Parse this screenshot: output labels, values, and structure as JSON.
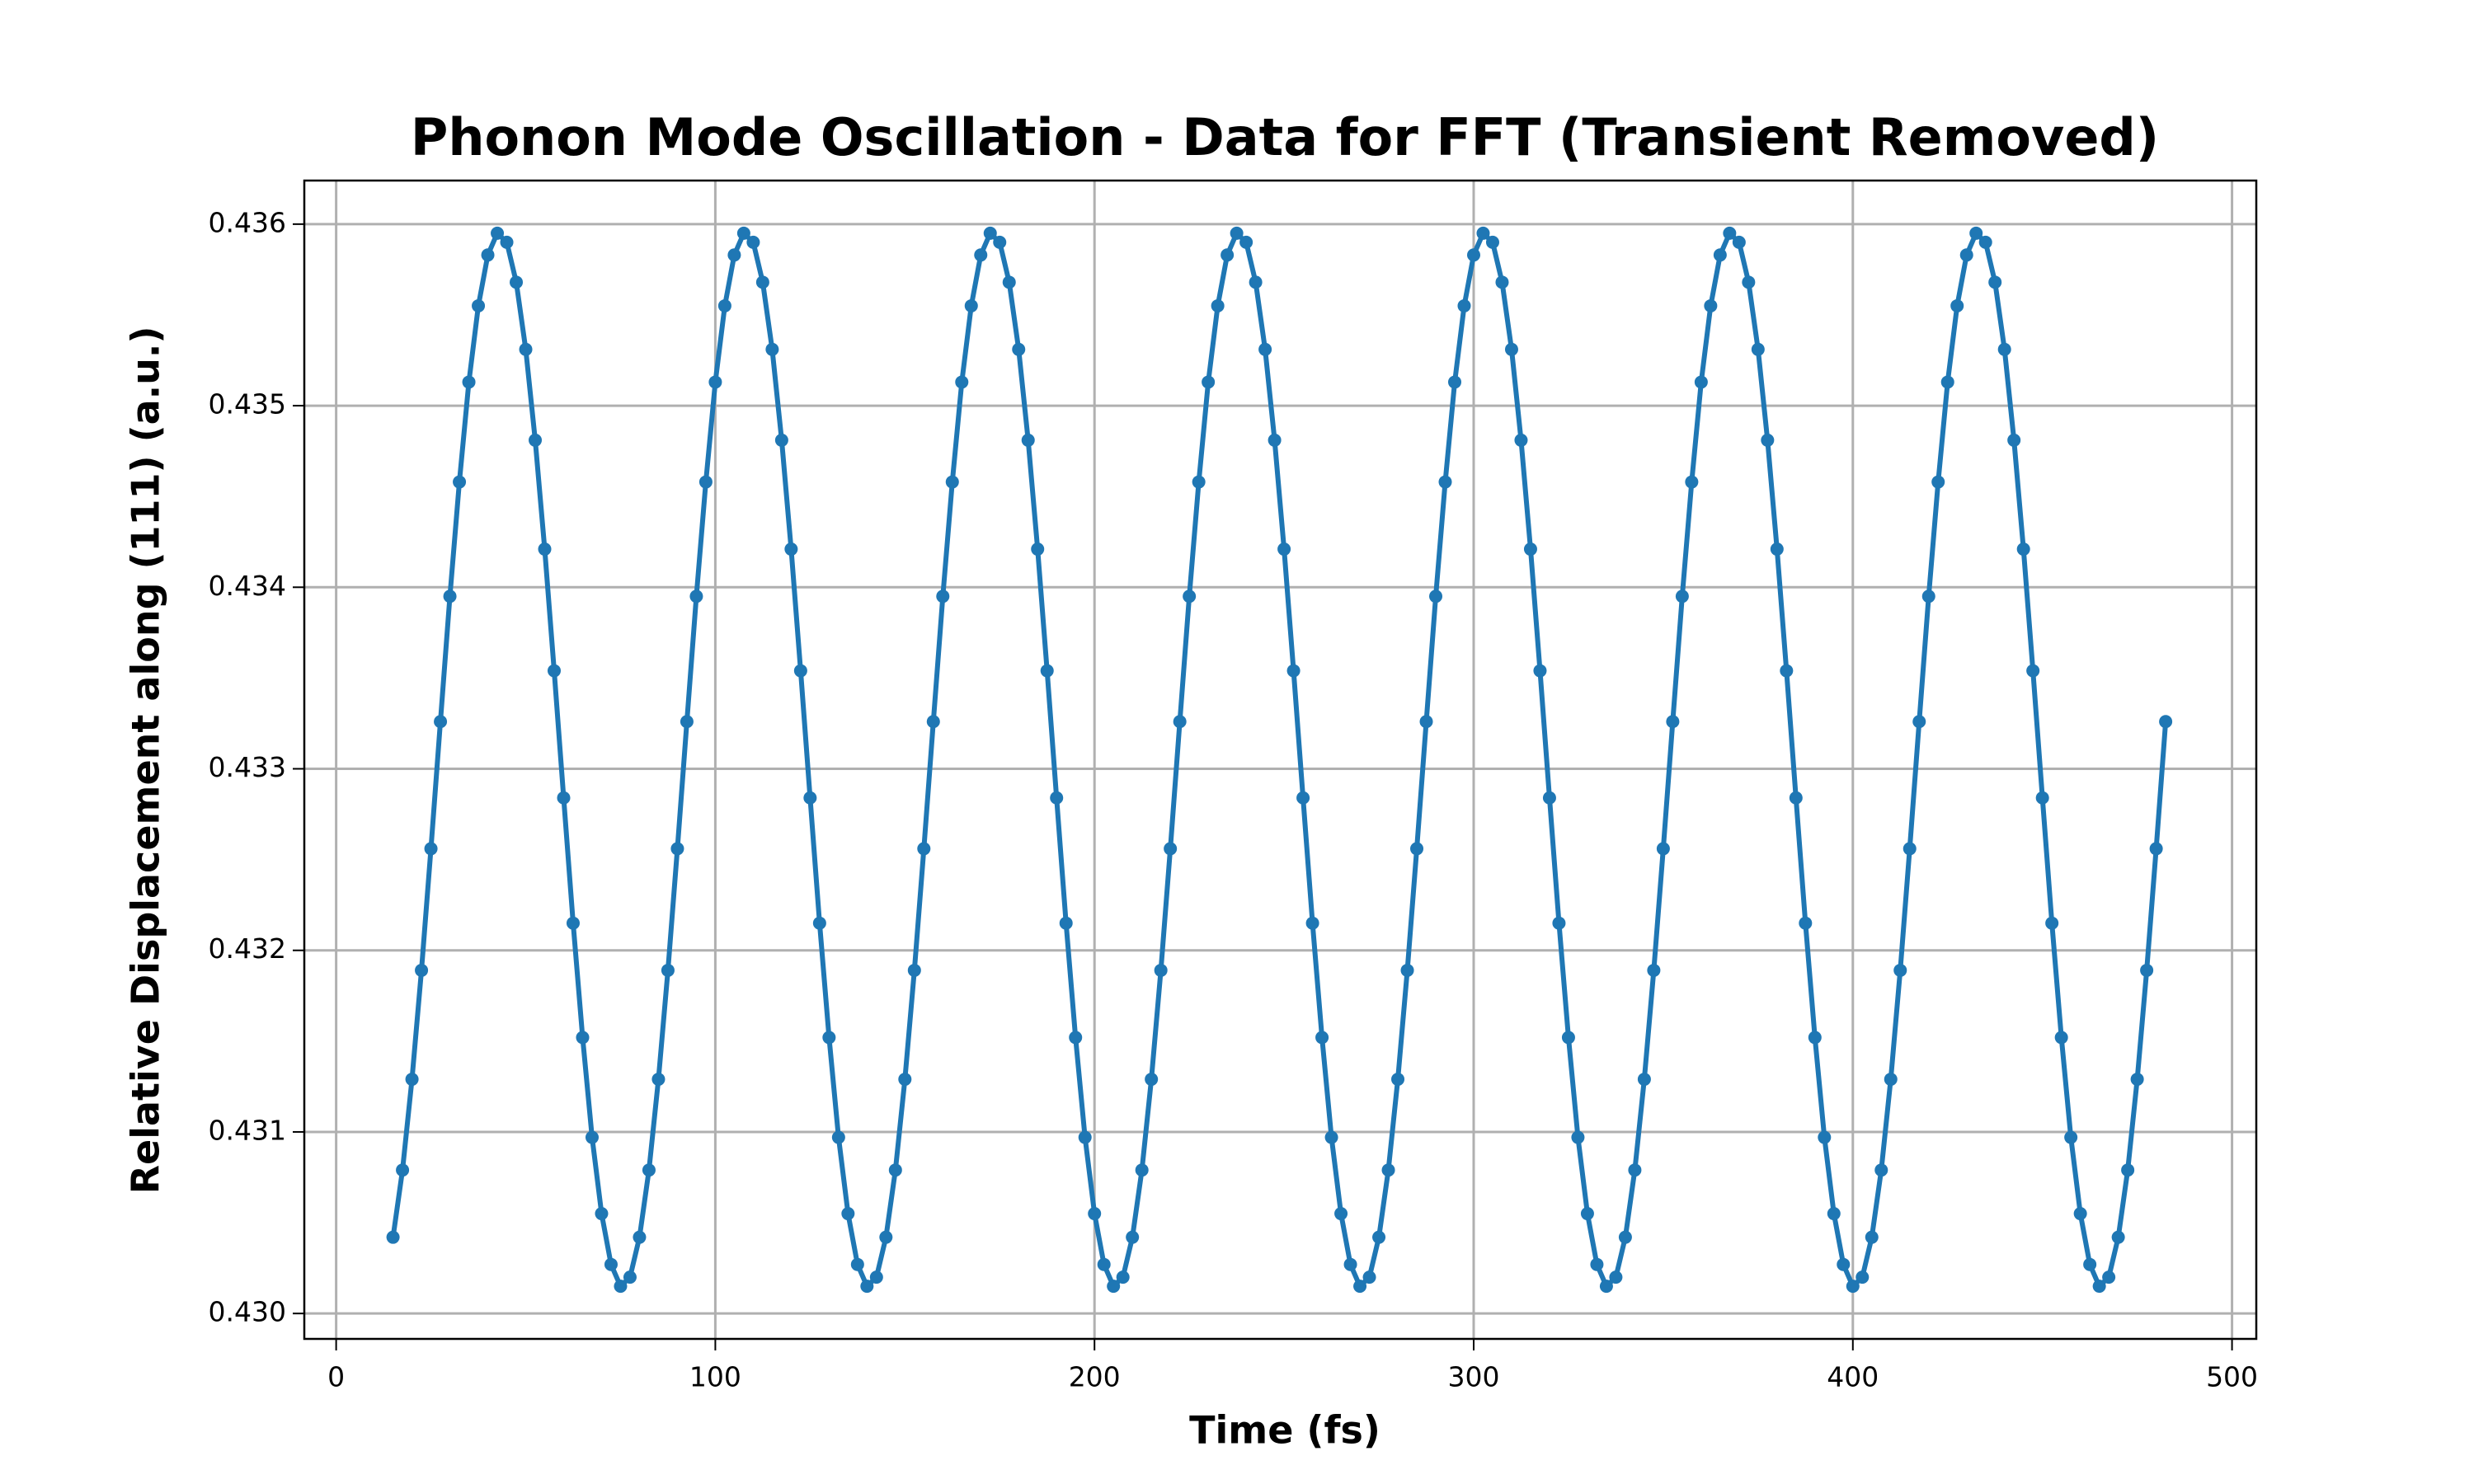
{
  "chart_data": {
    "type": "line",
    "title": "Phonon Mode Oscillation - Data for FFT (Transient Removed)",
    "x_label": "Time (fs)",
    "y_label": "Relative Displacement along (111) (a.u.)",
    "x": [
      15,
      17.5,
      20,
      22.5,
      25,
      27.5,
      30,
      32.5,
      35,
      37.5,
      40,
      42.5,
      45,
      47.5,
      50,
      52.5,
      55,
      57.5,
      60,
      62.5,
      65,
      67.5,
      70,
      72.5,
      75,
      77.5,
      80,
      82.5,
      85,
      87.5,
      90,
      92.5,
      95,
      97.5,
      100,
      102.5,
      105,
      107.5,
      110,
      112.5,
      115,
      117.5,
      120,
      122.5,
      125,
      127.5,
      130,
      132.5,
      135,
      137.5,
      140,
      142.5,
      145,
      147.5,
      150,
      152.5,
      155,
      157.5,
      160,
      162.5,
      165,
      167.5,
      170,
      172.5,
      175,
      177.5,
      180,
      182.5,
      185,
      187.5,
      190,
      192.5,
      195,
      197.5,
      200,
      202.5,
      205,
      207.5,
      210,
      212.5,
      215,
      217.5,
      220,
      222.5,
      225,
      227.5,
      230,
      232.5,
      235,
      237.5,
      240,
      242.5,
      245,
      247.5,
      250,
      252.5,
      255,
      257.5,
      260,
      262.5,
      265,
      267.5,
      270,
      272.5,
      275,
      277.5,
      280,
      282.5,
      285,
      287.5,
      290,
      292.5,
      295,
      297.5,
      300,
      302.5,
      305,
      307.5,
      310,
      312.5,
      315,
      317.5,
      320,
      322.5,
      325,
      327.5,
      330,
      332.5,
      335,
      337.5,
      340,
      342.5,
      345,
      347.5,
      350,
      352.5,
      355,
      357.5,
      360,
      362.5,
      365,
      367.5,
      370,
      372.5,
      375,
      377.5,
      380,
      382.5,
      385,
      387.5,
      390,
      392.5,
      395,
      397.5,
      400,
      402.5,
      405,
      407.5,
      410,
      412.5,
      415,
      417.5,
      420,
      422.5,
      425,
      427.5,
      430,
      432.5,
      435,
      437.5,
      440,
      442.5,
      445,
      447.5,
      450,
      452.5,
      455,
      457.5,
      460,
      462.5,
      465,
      467.5,
      470,
      472.5,
      475,
      477.5,
      480,
      482.5
    ],
    "series": [
      {
        "color": "#1f77b4",
        "values": [
          0.43042,
          0.43079,
          0.43129,
          0.43189,
          0.43256,
          0.43326,
          0.43395,
          0.43458,
          0.43513,
          0.43555,
          0.43583,
          0.43595,
          0.4359,
          0.43568,
          0.43531,
          0.43481,
          0.43421,
          0.43354,
          0.43284,
          0.43215,
          0.43152,
          0.43097,
          0.43055,
          0.43027,
          0.43015,
          0.4302,
          0.43042,
          0.43079,
          0.43129,
          0.43189,
          0.43256,
          0.43326,
          0.43395,
          0.43458,
          0.43513,
          0.43555,
          0.43583,
          0.43595,
          0.4359,
          0.43568,
          0.43531,
          0.43481,
          0.43421,
          0.43354,
          0.43284,
          0.43215,
          0.43152,
          0.43097,
          0.43055,
          0.43027,
          0.43015,
          0.4302,
          0.43042,
          0.43079,
          0.43129,
          0.43189,
          0.43256,
          0.43326,
          0.43395,
          0.43458,
          0.43513,
          0.43555,
          0.43583,
          0.43595,
          0.4359,
          0.43568,
          0.43531,
          0.43481,
          0.43421,
          0.43354,
          0.43284,
          0.43215,
          0.43152,
          0.43097,
          0.43055,
          0.43027,
          0.43015,
          0.4302,
          0.43042,
          0.43079,
          0.43129,
          0.43189,
          0.43256,
          0.43326,
          0.43395,
          0.43458,
          0.43513,
          0.43555,
          0.43583,
          0.43595,
          0.4359,
          0.43568,
          0.43531,
          0.43481,
          0.43421,
          0.43354,
          0.43284,
          0.43215,
          0.43152,
          0.43097,
          0.43055,
          0.43027,
          0.43015,
          0.4302,
          0.43042,
          0.43079,
          0.43129,
          0.43189,
          0.43256,
          0.43326,
          0.43395,
          0.43458,
          0.43513,
          0.43555,
          0.43583,
          0.43595,
          0.4359,
          0.43568,
          0.43531,
          0.43481,
          0.43421,
          0.43354,
          0.43284,
          0.43215,
          0.43152,
          0.43097,
          0.43055,
          0.43027,
          0.43015,
          0.4302,
          0.43042,
          0.43079,
          0.43129,
          0.43189,
          0.43256,
          0.43326,
          0.43395,
          0.43458,
          0.43513,
          0.43555,
          0.43583,
          0.43595,
          0.4359,
          0.43568,
          0.43531,
          0.43481,
          0.43421,
          0.43354,
          0.43284,
          0.43215,
          0.43152,
          0.43097,
          0.43055,
          0.43027,
          0.43015,
          0.4302,
          0.43042,
          0.43079,
          0.43129,
          0.43189,
          0.43256,
          0.43326,
          0.43395,
          0.43458,
          0.43513,
          0.43555,
          0.43583,
          0.43595,
          0.4359,
          0.43568,
          0.43531,
          0.43481,
          0.43421,
          0.43354,
          0.43284,
          0.43215,
          0.43152,
          0.43097,
          0.43055,
          0.43027,
          0.43015,
          0.4302,
          0.43042,
          0.43079,
          0.43129,
          0.43189,
          0.43256,
          0.43326
        ]
      }
    ],
    "xlim": [
      -8.4,
      506.4
    ],
    "ylim": [
      0.42986,
      0.43624
    ],
    "xticks": [
      0,
      100,
      200,
      300,
      400,
      500
    ],
    "yticks": [
      {
        "value": 0.43,
        "label": "0.430"
      },
      {
        "value": 0.431,
        "label": "0.431"
      },
      {
        "value": 0.432,
        "label": "0.432"
      },
      {
        "value": 0.433,
        "label": "0.433"
      },
      {
        "value": 0.434,
        "label": "0.434"
      },
      {
        "value": 0.435,
        "label": "0.435"
      },
      {
        "value": 0.436,
        "label": "0.436"
      }
    ],
    "grid": true
  }
}
